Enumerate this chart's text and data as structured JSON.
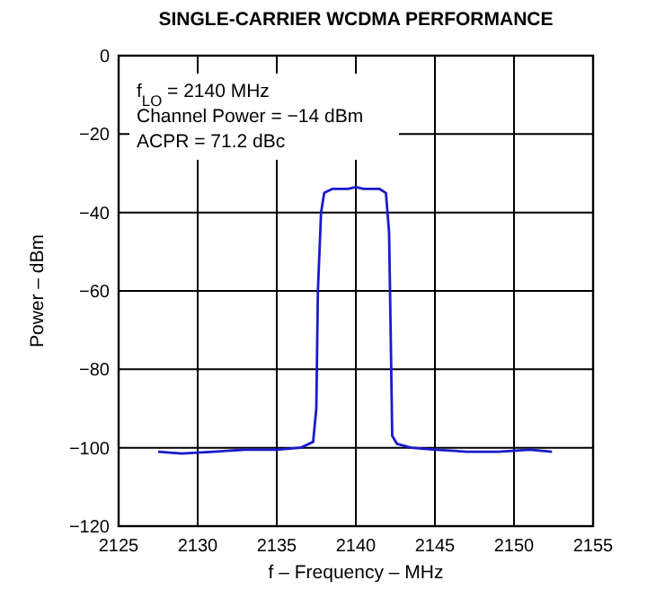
{
  "chart_data": {
    "type": "line",
    "title": "SINGLE-CARRIER WCDMA PERFORMANCE",
    "xlabel": "f – Frequency – MHz",
    "ylabel": "Power – dBm",
    "annotations": [
      "f$_{LO}$ = 2140 MHz",
      "Channel Power = −14 dBm",
      "ACPR = 71.2 dBc"
    ],
    "series": [
      {
        "color": "#1a1acc",
        "x": [
          2127.5,
          2129,
          2131,
          2133,
          2135,
          2136.5,
          2137.3,
          2137.5,
          2137.6,
          2137.8,
          2138,
          2138.5,
          2139.5,
          2140,
          2140.5,
          2141.5,
          2141.9,
          2142.1,
          2142.2,
          2142.3,
          2142.6,
          2143.5,
          2145,
          2147,
          2149,
          2151,
          2152.4
        ],
        "values": [
          -101,
          -101.5,
          -101,
          -100.5,
          -100.5,
          -100,
          -98.5,
          -90,
          -60,
          -40,
          -35,
          -34,
          -34,
          -33.5,
          -34,
          -34,
          -35,
          -45,
          -70,
          -97,
          -99,
          -100,
          -100.5,
          -101,
          -101,
          -100.5,
          -101
        ]
      }
    ],
    "xlim": [
      2125,
      2155
    ],
    "xticks": [
      2125,
      2130,
      2135,
      2140,
      2145,
      2150,
      2155
    ],
    "ylim": [
      -120,
      0
    ],
    "yticks": [
      -120,
      -100,
      -80,
      -60,
      -40,
      -20,
      0
    ],
    "grid": true,
    "marker": "none",
    "line_style": "solid"
  }
}
